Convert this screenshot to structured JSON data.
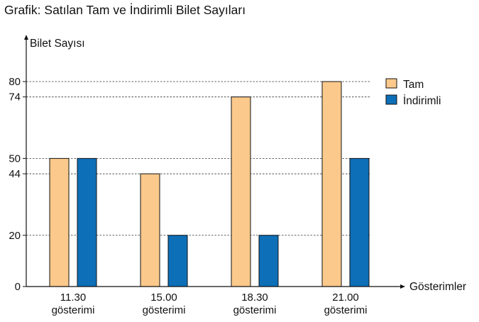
{
  "chart_data": {
    "type": "bar",
    "title": "Grafik: Satılan Tam ve İndirimli Bilet Sayıları",
    "ylabel": "Bilet Sayısı",
    "xlabel": "Gösterimler",
    "categories": [
      {
        "line1": "11.30",
        "line2": "gösterimi"
      },
      {
        "line1": "15.00",
        "line2": "gösterimi"
      },
      {
        "line1": "18.30",
        "line2": "gösterimi"
      },
      {
        "line1": "21.00",
        "line2": "gösterimi"
      }
    ],
    "series": [
      {
        "name": "Tam",
        "color": "#fbc98b",
        "values": [
          50,
          44,
          74,
          80
        ]
      },
      {
        "name": "İndirimli",
        "color": "#0d6fb8",
        "values": [
          50,
          20,
          20,
          50
        ]
      }
    ],
    "yticks": [
      0,
      20,
      44,
      50,
      74,
      80
    ],
    "ylim": [
      0,
      80
    ],
    "grid": "dashed reference lines at tick values",
    "legend": "top-right"
  }
}
